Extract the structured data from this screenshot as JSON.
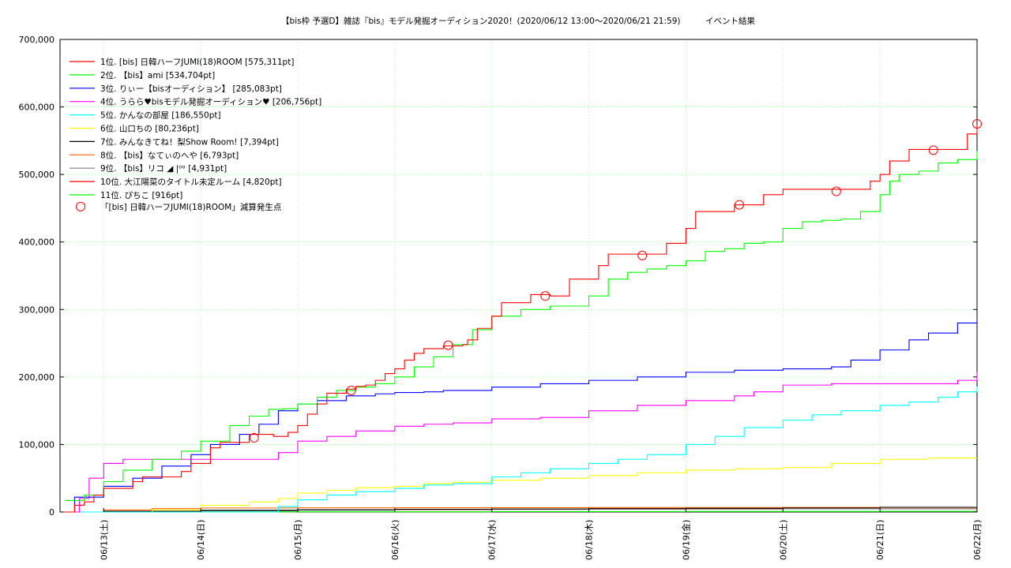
{
  "chart_data": {
    "type": "line",
    "title": "【bis枠 予選D】雑誌『bis』モデル発掘オーディション2020！(2020/06/12 13:00〜2020/06/21 21:59)　　　イベント結果",
    "xlabel": "",
    "ylabel": "",
    "ylim": [
      0,
      700000
    ],
    "xlim": [
      0,
      9.0
    ],
    "grid": true,
    "legend_position": "top-left",
    "y_ticks": [
      "0",
      "100,000",
      "200,000",
      "300,000",
      "400,000",
      "500,000",
      "600,000",
      "700,000"
    ],
    "y_tick_values": [
      0,
      100000,
      200000,
      300000,
      400000,
      500000,
      600000,
      700000
    ],
    "x_ticks": [
      "06/13(土)",
      "06/14(日)",
      "06/15(月)",
      "06/16(火)",
      "06/17(水)",
      "06/18(木)",
      "06/19(金)",
      "06/20(土)",
      "06/21(日)",
      "06/22(月)"
    ],
    "x_tick_values": [
      0.0,
      1.0,
      2.0,
      3.0,
      4.0,
      5.0,
      6.0,
      7.0,
      8.0,
      9.0
    ],
    "series": [
      {
        "name": "1位. [bis] 日韓ハーフJUMI(18)ROOM [575,311pt]",
        "color": "#ff0000",
        "x": [
          -0.45,
          -0.3,
          -0.2,
          -0.1,
          0.0,
          0.3,
          0.4,
          0.6,
          0.8,
          0.9,
          1.1,
          1.2,
          1.5,
          1.6,
          1.75,
          1.9,
          2.0,
          2.1,
          2.2,
          2.3,
          2.5,
          2.6,
          2.7,
          2.8,
          2.9,
          3.0,
          3.1,
          3.2,
          3.3,
          3.4,
          3.5,
          3.7,
          3.75,
          3.85,
          4.0,
          4.1,
          4.4,
          4.5,
          4.6,
          4.7,
          4.8,
          5.1,
          5.2,
          5.3,
          5.5,
          5.7,
          5.8,
          6.0,
          6.1,
          6.3,
          6.5,
          6.6,
          6.8,
          7.0,
          7.1,
          7.3,
          7.5,
          7.7,
          7.9,
          8.0,
          8.1,
          8.3,
          8.5,
          8.8,
          8.9,
          9.0
        ],
        "y": [
          0,
          10000,
          15000,
          25000,
          35000,
          45000,
          52000,
          52000,
          60000,
          72000,
          95000,
          103000,
          115000,
          115000,
          112000,
          118000,
          128000,
          145000,
          160000,
          176000,
          182000,
          186000,
          188000,
          195000,
          205000,
          212000,
          225000,
          235000,
          242000,
          242000,
          246000,
          248000,
          255000,
          272000,
          290000,
          310000,
          322000,
          322000,
          320000,
          320000,
          345000,
          365000,
          382000,
          382000,
          382000,
          382000,
          398000,
          420000,
          445000,
          445000,
          455000,
          455000,
          470000,
          478000,
          478000,
          478000,
          478000,
          478000,
          490000,
          500000,
          520000,
          537000,
          537000,
          537000,
          560000,
          574000
        ]
      },
      {
        "name": "2位. 【bis】ami [534,704pt]",
        "color": "#00ff00",
        "x": [
          -0.4,
          -0.2,
          0.0,
          0.2,
          0.5,
          0.8,
          1.0,
          1.3,
          1.5,
          1.7,
          1.85,
          2.0,
          2.2,
          2.4,
          2.6,
          2.8,
          3.0,
          3.2,
          3.4,
          3.6,
          3.8,
          4.0,
          4.3,
          4.6,
          4.8,
          5.0,
          5.2,
          5.4,
          5.6,
          5.8,
          6.0,
          6.2,
          6.4,
          6.6,
          6.8,
          7.0,
          7.2,
          7.4,
          7.6,
          7.8,
          8.0,
          8.1,
          8.2,
          8.4,
          8.6,
          8.8,
          9.0
        ],
        "y": [
          17000,
          25000,
          45000,
          62000,
          78000,
          90000,
          105000,
          128000,
          142000,
          152000,
          153000,
          160000,
          170000,
          180000,
          185000,
          190000,
          200000,
          215000,
          230000,
          248000,
          270000,
          290000,
          300000,
          305000,
          305000,
          320000,
          345000,
          355000,
          360000,
          365000,
          372000,
          386000,
          390000,
          398000,
          400000,
          420000,
          430000,
          432000,
          434000,
          445000,
          470000,
          490000,
          500000,
          505000,
          517000,
          522000,
          535000
        ]
      },
      {
        "name": "3位. りぃー【bisオーディション】 [285,083pt]",
        "color": "#0000ff",
        "x": [
          -0.45,
          -0.3,
          0.0,
          0.3,
          0.6,
          0.9,
          1.1,
          1.4,
          1.6,
          1.8,
          2.0,
          2.2,
          2.5,
          2.8,
          3.0,
          3.3,
          3.5,
          4.0,
          4.5,
          5.0,
          5.5,
          6.0,
          6.5,
          7.0,
          7.5,
          7.7,
          8.0,
          8.3,
          8.5,
          8.8,
          9.0
        ],
        "y": [
          0,
          22000,
          38000,
          50000,
          68000,
          85000,
          100000,
          115000,
          130000,
          150000,
          160000,
          165000,
          172000,
          175000,
          177000,
          178000,
          180000,
          185000,
          190000,
          195000,
          200000,
          207000,
          210000,
          212000,
          215000,
          225000,
          240000,
          255000,
          265000,
          280000,
          285000
        ]
      },
      {
        "name": "4位. うらら♥bisモデル発掘オーディション♥ [206,756pt]",
        "color": "#ff00ff",
        "x": [
          -0.45,
          -0.25,
          -0.15,
          0.0,
          0.2,
          0.5,
          1.0,
          1.5,
          1.8,
          2.0,
          2.3,
          2.6,
          3.0,
          3.3,
          3.6,
          4.0,
          4.5,
          5.0,
          5.5,
          6.0,
          6.5,
          6.7,
          7.0,
          7.5,
          8.0,
          8.5,
          8.8,
          9.0
        ],
        "y": [
          0,
          20000,
          50000,
          72000,
          78000,
          78000,
          78000,
          78000,
          88000,
          105000,
          112000,
          120000,
          127000,
          130000,
          132000,
          138000,
          140000,
          150000,
          158000,
          165000,
          172000,
          178000,
          188000,
          190000,
          190000,
          190000,
          195000,
          207000
        ]
      },
      {
        "name": "5位. かんなの部屋 [186,550pt]",
        "color": "#00ffff",
        "x": [
          -0.45,
          0.0,
          0.5,
          1.0,
          1.5,
          1.8,
          2.0,
          2.3,
          2.6,
          3.0,
          3.3,
          3.6,
          4.0,
          4.3,
          4.6,
          5.0,
          5.3,
          5.6,
          6.0,
          6.3,
          6.6,
          7.0,
          7.3,
          7.6,
          8.0,
          8.3,
          8.6,
          8.8,
          9.0
        ],
        "y": [
          0,
          0,
          0,
          0,
          0,
          8000,
          18000,
          25000,
          30000,
          35000,
          40000,
          42000,
          52000,
          58000,
          64000,
          72000,
          78000,
          85000,
          100000,
          112000,
          125000,
          136000,
          144000,
          150000,
          158000,
          163000,
          170000,
          178000,
          186000
        ]
      },
      {
        "name": "6位. 山口ちの [80,236pt]",
        "color": "#ffff00",
        "x": [
          -0.45,
          0.0,
          0.5,
          1.0,
          1.5,
          1.8,
          2.0,
          2.3,
          2.6,
          3.0,
          3.3,
          3.6,
          4.0,
          4.5,
          5.0,
          5.5,
          6.0,
          6.5,
          7.0,
          7.5,
          8.0,
          8.5,
          9.0
        ],
        "y": [
          0,
          0,
          3000,
          10000,
          15000,
          20000,
          28000,
          32000,
          36000,
          38000,
          42000,
          44000,
          47000,
          50000,
          54000,
          58000,
          62000,
          64000,
          66000,
          72000,
          78000,
          80000,
          80000
        ]
      },
      {
        "name": "7位. みんなきてね！梨Show Room! [7,394pt]",
        "color": "#000000",
        "x": [
          -0.45,
          0.0,
          1.0,
          2.0,
          3.0,
          4.0,
          5.0,
          6.0,
          7.0,
          8.0,
          9.0
        ],
        "y": [
          0,
          500,
          2000,
          3000,
          4000,
          4500,
          5000,
          5500,
          6000,
          7000,
          7394
        ]
      },
      {
        "name": "8位. 【bis】なてぃのへや [6,793pt]",
        "color": "#ff6600",
        "x": [
          -0.45,
          0.0,
          0.5,
          1.0,
          2.0,
          3.0,
          4.0,
          5.0,
          6.0,
          7.0,
          8.0,
          9.0
        ],
        "y": [
          0,
          3000,
          5000,
          6000,
          6200,
          6400,
          6500,
          6600,
          6700,
          6750,
          6790,
          6793
        ]
      },
      {
        "name": "9位. 【bis】リコ ◢ |ᵒᵒ [4,931pt]",
        "color": "#808080",
        "x": [
          -0.45,
          0.0,
          1.0,
          2.0,
          3.0,
          4.0,
          5.0,
          6.0,
          7.0,
          8.0,
          9.0
        ],
        "y": [
          0,
          2000,
          3000,
          3500,
          4000,
          4200,
          4400,
          4600,
          4800,
          4900,
          4931
        ]
      },
      {
        "name": "10位. 大江陽菜のタイトル未定ルーム [4,820pt]",
        "color": "#ff0000",
        "x": [
          -0.45,
          0.0,
          1.0,
          2.0,
          3.0,
          4.0,
          5.0,
          6.0,
          7.0,
          8.0,
          9.0
        ],
        "y": [
          0,
          1500,
          2500,
          3000,
          3500,
          4000,
          4300,
          4500,
          4700,
          4800,
          4820
        ]
      },
      {
        "name": "11位. ぴちこ [916pt]",
        "color": "#00ff00",
        "x": [
          -0.45,
          0.0,
          2.0,
          4.0,
          6.0,
          8.0,
          9.0
        ],
        "y": [
          0,
          200,
          400,
          600,
          800,
          900,
          916
        ]
      }
    ],
    "markers": {
      "name": "「[bis] 日韓ハーフJUMI(18)ROOM」減算発生点",
      "color": "#ff0000",
      "x": [
        1.55,
        2.55,
        3.55,
        4.55,
        5.55,
        6.55,
        7.55,
        8.55,
        9.0
      ],
      "y": [
        110000,
        180000,
        247000,
        320000,
        380000,
        455000,
        475000,
        536000,
        575000
      ]
    }
  }
}
